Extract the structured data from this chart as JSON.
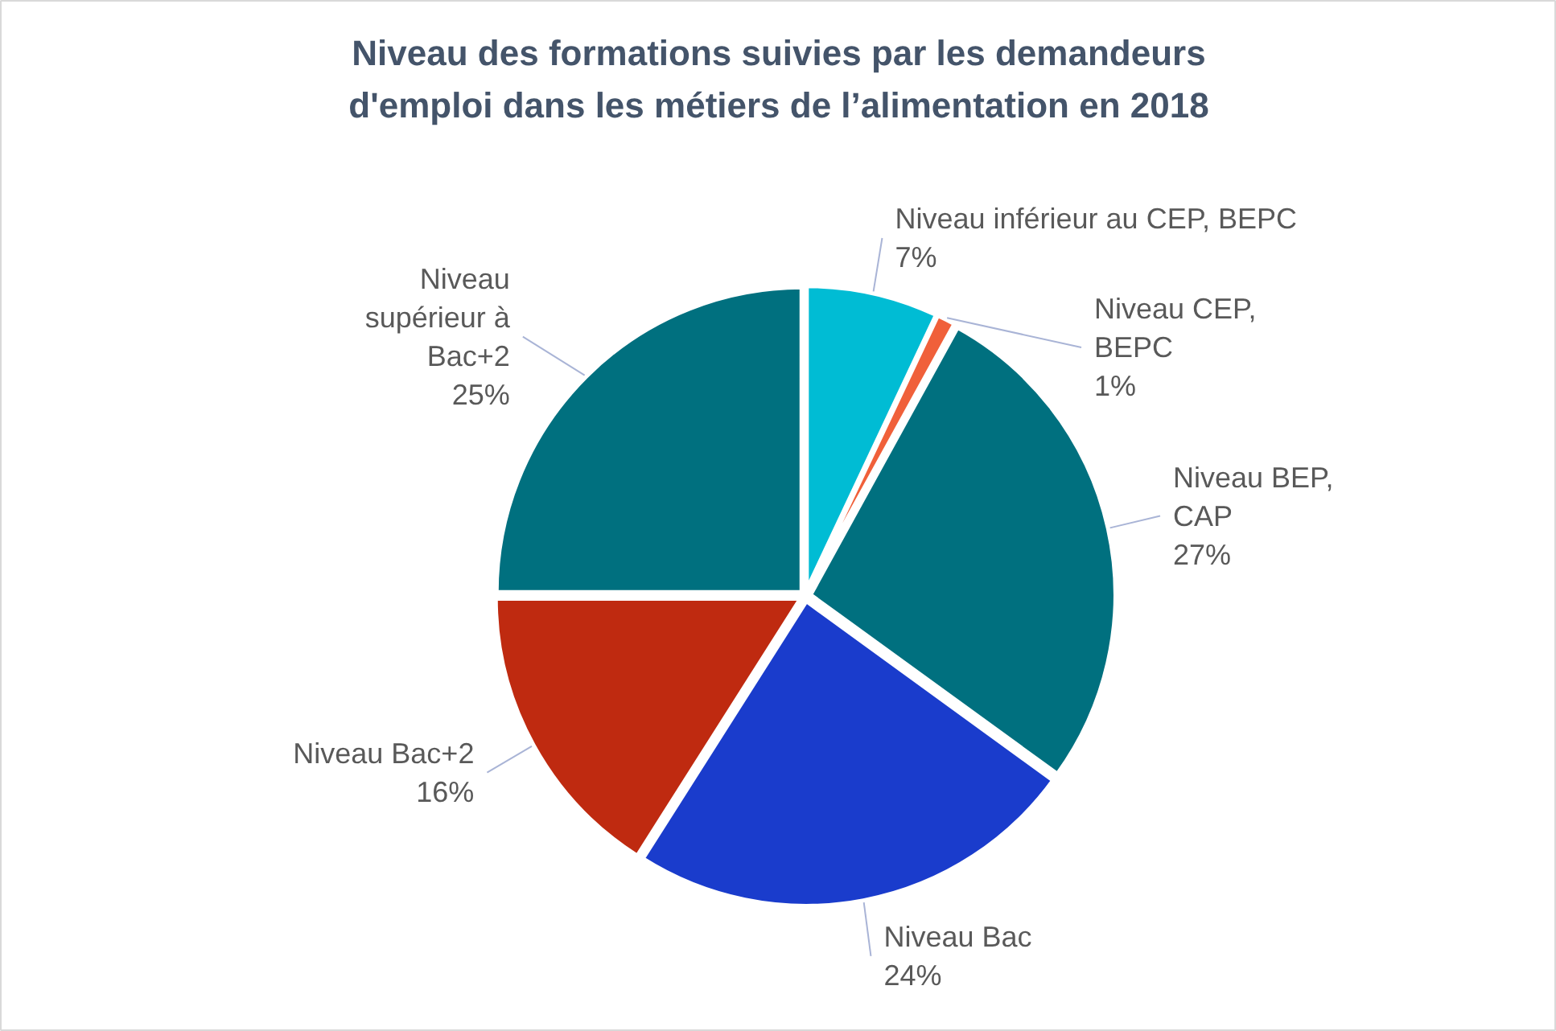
{
  "chart_data": {
    "type": "pie",
    "title": "Niveau des formations suivies par les demandeurs d'emploi dans les métiers de l’alimentation en 2018",
    "categories": [
      "Niveau inférieur au CEP, BEPC",
      "Niveau CEP, BEPC",
      "Niveau BEP, CAP",
      "Niveau Bac",
      "Niveau Bac+2",
      "Niveau supérieur à Bac+2"
    ],
    "values": [
      7,
      1,
      27,
      24,
      16,
      25
    ],
    "value_labels": [
      "7%",
      "1%",
      "27%",
      "24%",
      "16%",
      "25%"
    ],
    "colors": [
      "#00bcd4",
      "#f0603a",
      "#00707f",
      "#1a3ccc",
      "#bf2a10",
      "#00707f"
    ]
  }
}
